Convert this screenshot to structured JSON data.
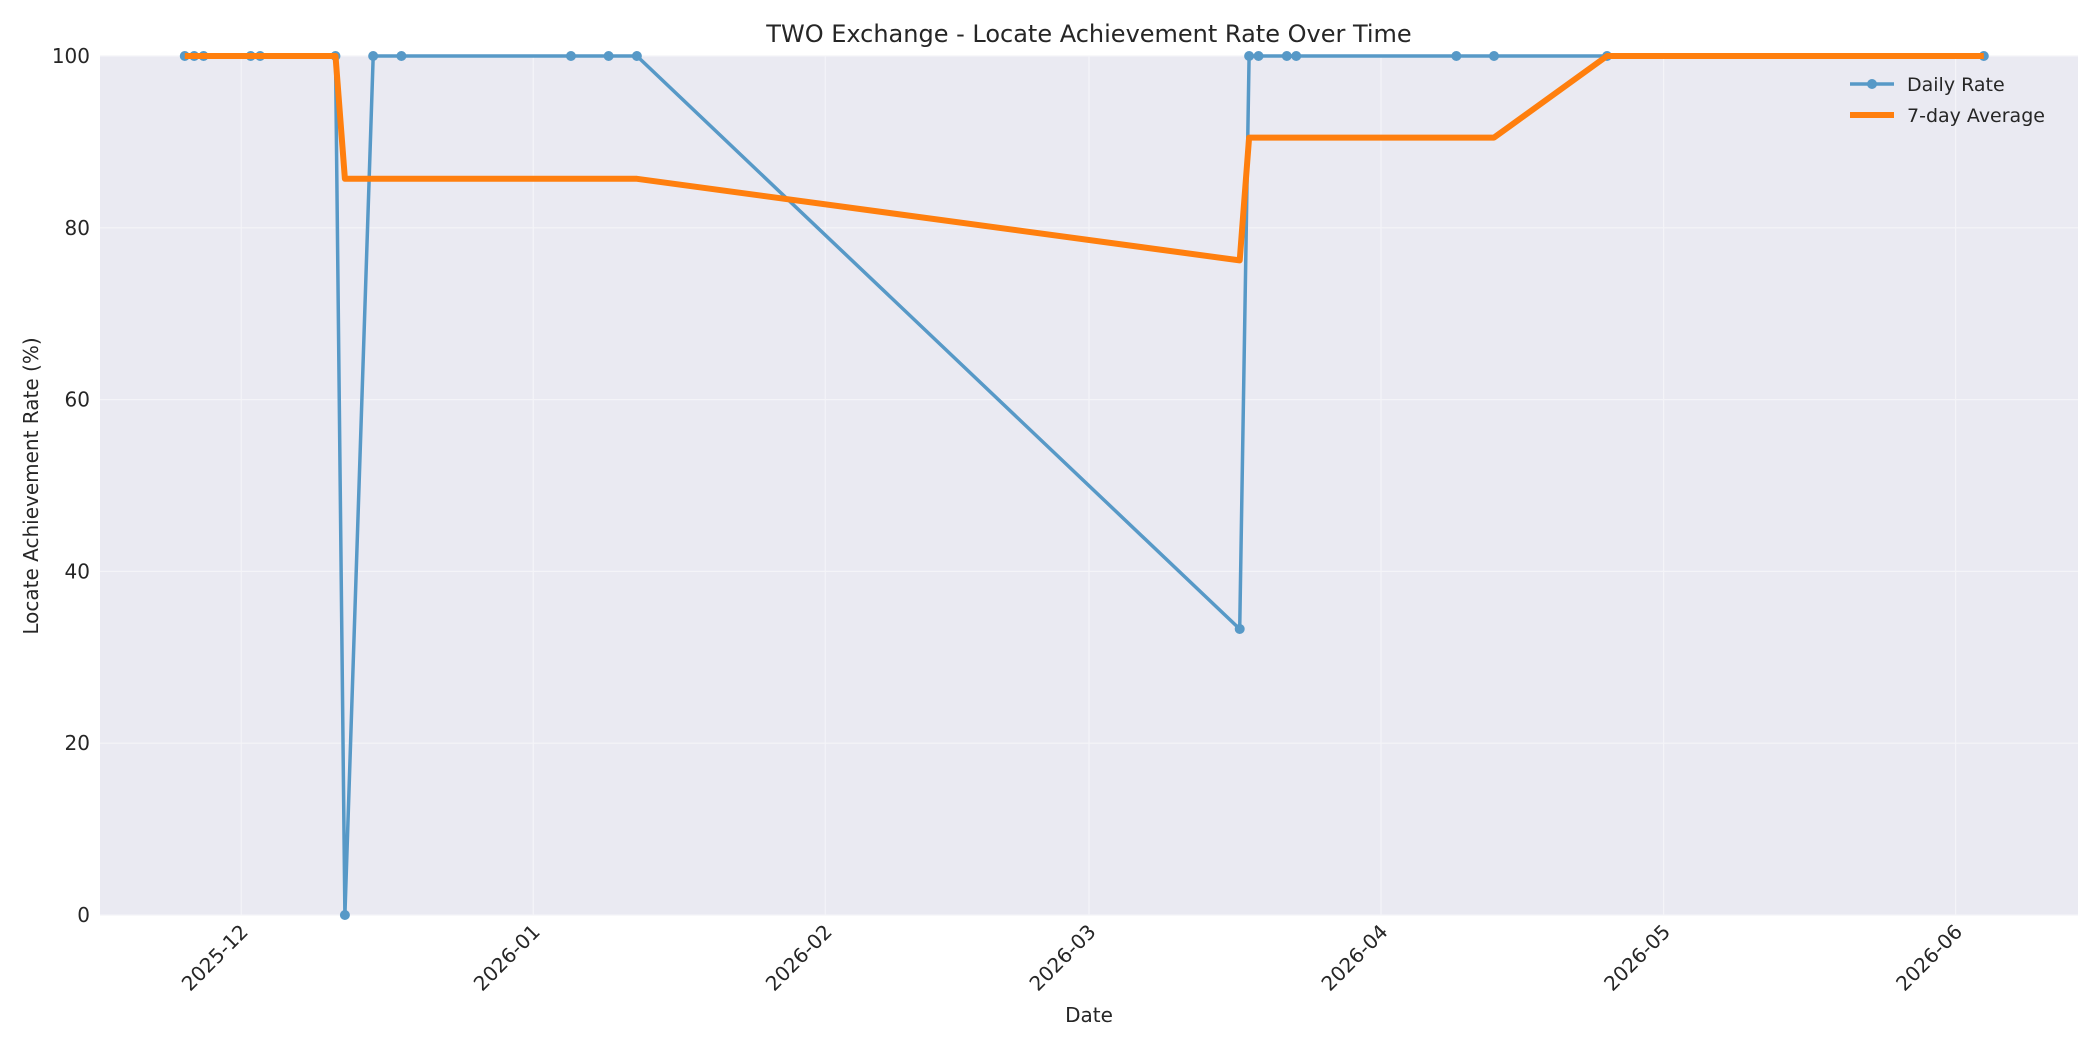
{
  "chart_data": {
    "type": "line",
    "title": "TWO Exchange - Locate Achievement Rate Over Time",
    "xlabel": "Date",
    "ylabel": "Locate Achievement Rate (%)",
    "xlim": [
      "2025-11-16",
      "2026-06-14"
    ],
    "ylim": [
      0,
      100
    ],
    "x_ticks": [
      "2025-12-01",
      "2026-01-01",
      "2026-02-01",
      "2026-03-01",
      "2026-04-01",
      "2026-05-01",
      "2026-06-01"
    ],
    "x_tick_labels": [
      "2025-12",
      "2026-01",
      "2026-02",
      "2026-03",
      "2026-04",
      "2026-05",
      "2026-06"
    ],
    "y_ticks": [
      0,
      20,
      40,
      60,
      80,
      100
    ],
    "grid": true,
    "legend_position": "top-right",
    "colors": {
      "background": "#EAEAF2",
      "grid": "#F4F4F8",
      "daily": "#5799C7",
      "average": "#FF7F0E"
    },
    "series": [
      {
        "name": "Daily Rate",
        "marker": "circle",
        "x": [
          "2025-11-25",
          "2025-11-26",
          "2025-11-27",
          "2025-12-02",
          "2025-12-03",
          "2025-12-11",
          "2025-12-12",
          "2025-12-15",
          "2025-12-18",
          "2026-01-05",
          "2026-01-09",
          "2026-01-12",
          "2026-03-17",
          "2026-03-18",
          "2026-03-19",
          "2026-03-22",
          "2026-03-23",
          "2026-04-09",
          "2026-04-13",
          "2026-04-25",
          "2026-06-04"
        ],
        "values": [
          100,
          100,
          100,
          100,
          100,
          100,
          0,
          100,
          100,
          100,
          100,
          100,
          33.3,
          100,
          100,
          100,
          100,
          100,
          100,
          100,
          100
        ]
      },
      {
        "name": "7-day Average",
        "marker": "none",
        "x": [
          "2025-11-25",
          "2025-12-11",
          "2025-12-12",
          "2026-01-12",
          "2026-03-17",
          "2026-03-18",
          "2026-04-13",
          "2026-04-25",
          "2026-06-04"
        ],
        "values": [
          100,
          100,
          85.7,
          85.7,
          76.2,
          90.5,
          90.5,
          100,
          100
        ]
      }
    ]
  }
}
